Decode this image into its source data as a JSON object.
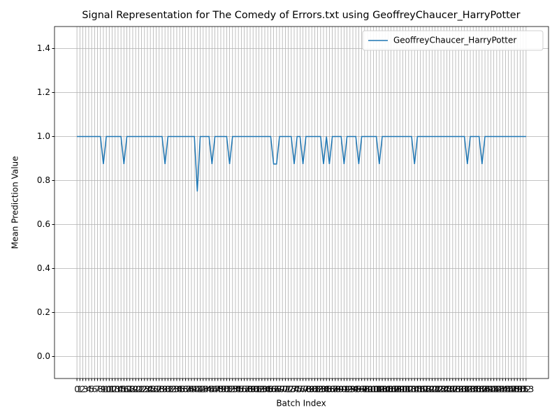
{
  "chart_data": {
    "type": "line",
    "title": "Signal Representation for The Comedy of Errors.txt using GeoffreyChaucer_HarryPotter",
    "x_label": "Batch Index",
    "y_label": "Mean Prediction Value",
    "x": [
      0,
      1,
      2,
      3,
      4,
      5,
      6,
      7,
      8,
      9,
      10,
      11,
      12,
      13,
      14,
      15,
      16,
      17,
      18,
      19,
      20,
      21,
      22,
      23,
      24,
      25,
      26,
      27,
      28,
      29,
      30,
      31,
      32,
      33,
      34,
      35,
      36,
      37,
      38,
      39,
      40,
      41,
      42,
      43,
      44,
      45,
      46,
      47,
      48,
      49,
      50,
      51,
      52,
      53,
      54,
      55,
      56,
      57,
      58,
      59,
      60,
      61,
      62,
      63,
      64,
      65,
      66,
      67,
      68,
      69,
      70,
      71,
      72,
      73,
      74,
      75,
      76,
      77,
      78,
      79,
      80,
      81,
      82,
      83,
      84,
      85,
      86,
      87,
      88,
      89,
      90,
      91,
      92,
      93,
      94,
      95,
      96,
      97,
      98,
      99,
      100,
      101,
      102,
      103,
      104,
      105,
      106,
      107,
      108,
      109,
      110,
      111,
      112,
      113,
      114,
      115,
      116,
      117,
      118,
      119,
      120,
      121,
      122,
      123,
      124,
      125,
      126,
      127,
      128,
      129,
      130,
      131,
      132,
      133,
      134,
      135,
      136,
      137,
      138,
      139,
      140,
      141,
      142,
      143,
      144,
      145,
      146,
      147,
      148,
      149,
      150,
      151,
      152,
      153
    ],
    "series": [
      {
        "name": "GeoffreyChaucer_HarryPotter",
        "color": "#1f77b4",
        "values": [
          1,
          1,
          1,
          1,
          1,
          1,
          1,
          1,
          1,
          0.875,
          1,
          1,
          1,
          1,
          1,
          1,
          0.875,
          1,
          1,
          1,
          1,
          1,
          1,
          1,
          1,
          1,
          1,
          1,
          1,
          1,
          0.875,
          1,
          1,
          1,
          1,
          1,
          1,
          1,
          1,
          1,
          1,
          0.75,
          1,
          1,
          1,
          1,
          0.875,
          1,
          1,
          1,
          1,
          1,
          0.875,
          1,
          1,
          1,
          1,
          1,
          1,
          1,
          1,
          1,
          1,
          1,
          1,
          1,
          1,
          0.875,
          0.875,
          1,
          1,
          1,
          1,
          1,
          0.875,
          1,
          1,
          0.875,
          1,
          1,
          1,
          1,
          1,
          1,
          0.875,
          1,
          0.875,
          1,
          1,
          1,
          1,
          0.875,
          1,
          1,
          1,
          1,
          0.875,
          1,
          1,
          1,
          1,
          1,
          1,
          0.875,
          1,
          1,
          1,
          1,
          1,
          1,
          1,
          1,
          1,
          1,
          1,
          0.875,
          1,
          1,
          1,
          1,
          1,
          1,
          1,
          1,
          1,
          1,
          1,
          1,
          1,
          1,
          1,
          1,
          1,
          0.875,
          1,
          1,
          1,
          1,
          0.875,
          1,
          1,
          1,
          1,
          1,
          1,
          1,
          1,
          1,
          1,
          1,
          1,
          1,
          1,
          1
        ]
      }
    ],
    "xlim": [
      -7.65,
      160.65
    ],
    "xticks": [
      0,
      1,
      2,
      3,
      4,
      5,
      6,
      7,
      8,
      9,
      10,
      11,
      12,
      13,
      14,
      15,
      16,
      17,
      18,
      19,
      20,
      21,
      22,
      23,
      24,
      25,
      26,
      27,
      28,
      29,
      30,
      31,
      32,
      33,
      34,
      35,
      36,
      37,
      38,
      39,
      40,
      41,
      42,
      43,
      44,
      45,
      46,
      47,
      48,
      49,
      50,
      51,
      52,
      53,
      54,
      55,
      56,
      57,
      58,
      59,
      60,
      61,
      62,
      63,
      64,
      65,
      66,
      67,
      68,
      69,
      70,
      71,
      72,
      73,
      74,
      75,
      76,
      77,
      78,
      79,
      80,
      81,
      82,
      83,
      84,
      85,
      86,
      87,
      88,
      89,
      90,
      91,
      92,
      93,
      94,
      95,
      96,
      97,
      98,
      99,
      100,
      101,
      102,
      103,
      104,
      105,
      106,
      107,
      108,
      109,
      110,
      111,
      112,
      113,
      114,
      115,
      116,
      117,
      118,
      119,
      120,
      121,
      122,
      123,
      124,
      125,
      126,
      127,
      128,
      129,
      130,
      131,
      132,
      133,
      134,
      135,
      136,
      137,
      138,
      139,
      140,
      141,
      142,
      143,
      144,
      145,
      146,
      147,
      148,
      149,
      150,
      151,
      152,
      153
    ],
    "ylim": [
      -0.1,
      1.5
    ],
    "yticks": [
      {
        "value": 0,
        "label": "0.0"
      },
      {
        "value": 0.2,
        "label": "0.2"
      },
      {
        "value": 0.4,
        "label": "0.4"
      },
      {
        "value": 0.6,
        "label": "0.6"
      },
      {
        "value": 0.8,
        "label": "0.8"
      },
      {
        "value": 1,
        "label": "1.0"
      },
      {
        "value": 1.2,
        "label": "1.2"
      },
      {
        "value": 1.4,
        "label": "1.4"
      }
    ],
    "grid": true,
    "legend": "upper right"
  }
}
